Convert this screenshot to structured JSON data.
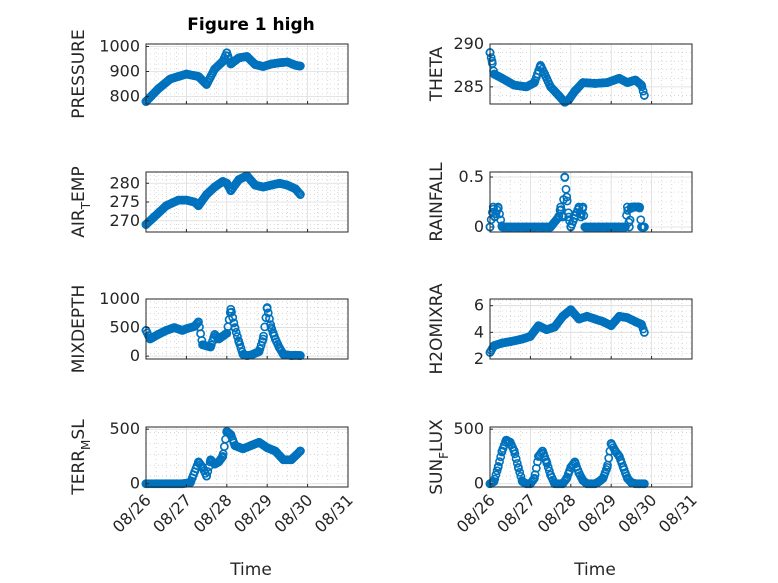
{
  "title": "Figure 1 high",
  "accent_color": "#0072BD",
  "x_tick_labels": [
    "08/26",
    "08/27",
    "08/28",
    "08/29",
    "08/30",
    "08/31"
  ],
  "x_label": "Time",
  "chart_data": [
    {
      "id": "pressure",
      "type": "scatter",
      "ylabel": "PRESSURE",
      "title": "Figure 1 high",
      "ylim": [
        770,
        1010
      ],
      "yticks": [
        800,
        900,
        1000
      ],
      "ytick_labels": [
        "800",
        "900",
        "1000"
      ],
      "xlim_days": [
        26,
        31
      ],
      "grid": true,
      "data_xmax": 29.82,
      "x": [
        26.0,
        26.3,
        26.6,
        27.0,
        27.3,
        27.5,
        27.7,
        27.9,
        28.0,
        28.1,
        28.3,
        28.5,
        28.7,
        28.9,
        29.1,
        29.3,
        29.5,
        29.7,
        29.8
      ],
      "y": [
        780,
        830,
        870,
        890,
        880,
        848,
        910,
        940,
        975,
        930,
        955,
        960,
        928,
        920,
        930,
        935,
        938,
        925,
        922
      ]
    },
    {
      "id": "theta",
      "type": "scatter",
      "ylabel": "THETA",
      "ylim": [
        283,
        290
      ],
      "yticks": [
        285,
        290
      ],
      "ytick_labels": [
        "285",
        "290"
      ],
      "xlim_days": [
        26,
        31
      ],
      "grid": true,
      "data_xmax": 29.82,
      "x": [
        26.0,
        26.05,
        26.1,
        26.3,
        26.6,
        26.9,
        27.1,
        27.25,
        27.35,
        27.5,
        27.7,
        27.85,
        27.95,
        28.1,
        28.3,
        28.6,
        28.9,
        29.2,
        29.4,
        29.6,
        29.75,
        29.82
      ],
      "y": [
        289,
        288,
        286.5,
        286,
        285.2,
        285,
        285.5,
        287.5,
        286.5,
        285,
        284,
        283.2,
        283.5,
        284.5,
        285.5,
        285.4,
        285.5,
        286,
        285.5,
        285.8,
        285.2,
        284
      ]
    },
    {
      "id": "air_temp",
      "type": "scatter",
      "ylabel": "AIR_TEMP",
      "ylabel_display": {
        "base": "AIR",
        "sub": "T",
        "rest": "EMP"
      },
      "ylim": [
        267,
        283
      ],
      "yticks": [
        270,
        275,
        280
      ],
      "ytick_labels": [
        "270",
        "275",
        "280"
      ],
      "xlim_days": [
        26,
        31
      ],
      "grid": true,
      "data_xmax": 29.82,
      "x": [
        26.0,
        26.2,
        26.5,
        26.8,
        27.0,
        27.2,
        27.3,
        27.5,
        27.7,
        27.9,
        28.0,
        28.1,
        28.3,
        28.5,
        28.7,
        28.9,
        29.1,
        29.3,
        29.5,
        29.7,
        29.82
      ],
      "y": [
        269,
        271,
        274,
        275.5,
        275.5,
        275,
        274,
        277,
        279,
        280.5,
        280,
        278,
        281,
        282,
        279.5,
        279,
        279.5,
        280,
        279.5,
        278.5,
        277
      ]
    },
    {
      "id": "rainfall",
      "type": "scatter",
      "ylabel": "RAINFALL",
      "ylim": [
        -0.05,
        0.55
      ],
      "yticks": [
        0,
        0.5
      ],
      "ytick_labels": [
        "0",
        "0.5"
      ],
      "xlim_days": [
        26,
        31
      ],
      "grid": true,
      "data_xmax": 29.82,
      "x": [
        26.0,
        26.08,
        26.12,
        26.2,
        26.3,
        26.5,
        26.7,
        26.9,
        27.1,
        27.3,
        27.5,
        27.7,
        27.75,
        27.8,
        27.85,
        27.9,
        27.95,
        28.0,
        28.2,
        28.25,
        28.3,
        28.35,
        28.5,
        28.7,
        28.9,
        29.1,
        29.2,
        29.35,
        29.4,
        29.45,
        29.5,
        29.55,
        29.6,
        29.65,
        29.7,
        29.75,
        29.82
      ],
      "y": [
        0,
        0.2,
        0.1,
        0.2,
        0,
        0,
        0,
        0,
        0,
        0,
        0,
        0.1,
        0.2,
        0.1,
        0.5,
        0.3,
        0.1,
        0,
        0.2,
        0.1,
        0.2,
        0,
        0,
        0,
        0,
        0,
        0,
        0,
        0.2,
        0,
        0.2,
        0.2,
        0.2,
        0.2,
        0.2,
        0,
        0
      ]
    },
    {
      "id": "mixdepth",
      "type": "scatter",
      "ylabel": "MIXDEPTH",
      "ylim": [
        -50,
        1000
      ],
      "yticks": [
        0,
        500,
        1000
      ],
      "ytick_labels": [
        "0",
        "500",
        "1000"
      ],
      "xlim_days": [
        26,
        31
      ],
      "grid": true,
      "data_xmax": 29.82,
      "x": [
        26.0,
        26.1,
        26.3,
        26.5,
        26.7,
        26.9,
        27.0,
        27.2,
        27.3,
        27.4,
        27.5,
        27.6,
        27.7,
        27.8,
        27.9,
        28.0,
        28.1,
        28.2,
        28.3,
        28.4,
        28.5,
        28.6,
        28.8,
        28.9,
        29.0,
        29.1,
        29.15,
        29.2,
        29.3,
        29.4,
        29.5,
        29.6,
        29.7,
        29.82
      ],
      "y": [
        450,
        300,
        380,
        450,
        500,
        450,
        480,
        520,
        600,
        200,
        180,
        160,
        380,
        300,
        350,
        400,
        820,
        500,
        250,
        30,
        10,
        20,
        80,
        300,
        850,
        500,
        400,
        300,
        150,
        30,
        20,
        10,
        15,
        10
      ]
    },
    {
      "id": "h2omixra",
      "type": "scatter",
      "ylabel": "H2OMIXRA",
      "ylim": [
        2,
        6.5
      ],
      "yticks": [
        2,
        4,
        6
      ],
      "ytick_labels": [
        "2",
        "4",
        "6"
      ],
      "xlim_days": [
        26,
        31
      ],
      "grid": true,
      "data_xmax": 29.82,
      "x": [
        26.0,
        26.1,
        26.3,
        26.5,
        26.8,
        27.0,
        27.2,
        27.4,
        27.6,
        27.8,
        28.0,
        28.2,
        28.4,
        28.6,
        28.8,
        29.0,
        29.2,
        29.4,
        29.6,
        29.75,
        29.82
      ],
      "y": [
        2.5,
        3.0,
        3.2,
        3.3,
        3.5,
        3.7,
        4.5,
        4.2,
        4.4,
        5.2,
        5.7,
        5.0,
        5.2,
        5.0,
        4.8,
        4.5,
        5.2,
        5.1,
        4.8,
        4.6,
        4.0
      ]
    },
    {
      "id": "terr_msl",
      "type": "scatter",
      "ylabel": "TERR_MSL",
      "ylabel_display": {
        "base": "TERR",
        "sub": "M",
        "rest": "SL"
      },
      "ylim": [
        -30,
        520
      ],
      "yticks": [
        0,
        500
      ],
      "ytick_labels": [
        "0",
        "500"
      ],
      "xlim_days": [
        26,
        31
      ],
      "grid": true,
      "data_xmax": 29.82,
      "x": [
        26.0,
        26.3,
        26.6,
        26.9,
        27.1,
        27.3,
        27.4,
        27.5,
        27.6,
        27.7,
        27.8,
        27.9,
        28.0,
        28.1,
        28.2,
        28.4,
        28.6,
        28.8,
        29.0,
        29.2,
        29.4,
        29.6,
        29.82
      ],
      "y": [
        0,
        0,
        0,
        0,
        10,
        200,
        150,
        70,
        220,
        180,
        200,
        250,
        480,
        450,
        350,
        320,
        350,
        380,
        330,
        300,
        220,
        220,
        300
      ]
    },
    {
      "id": "sun_flux",
      "type": "scatter",
      "ylabel": "SUN_FLUX",
      "ylabel_display": {
        "base": "SUN",
        "sub": "F",
        "rest": "LUX"
      },
      "ylim": [
        -30,
        520
      ],
      "yticks": [
        0,
        500
      ],
      "ytick_labels": [
        "0",
        "500"
      ],
      "xlim_days": [
        26,
        31
      ],
      "grid": true,
      "data_xmax": 29.82,
      "x": [
        26.0,
        26.1,
        26.2,
        26.3,
        26.4,
        26.5,
        26.6,
        26.7,
        26.8,
        26.9,
        27.0,
        27.1,
        27.2,
        27.3,
        27.4,
        27.5,
        27.6,
        27.7,
        27.8,
        27.9,
        28.0,
        28.1,
        28.2,
        28.3,
        28.4,
        28.5,
        28.6,
        28.7,
        28.8,
        28.9,
        29.0,
        29.1,
        29.2,
        29.3,
        29.4,
        29.5,
        29.6,
        29.7,
        29.82
      ],
      "y": [
        0,
        20,
        150,
        300,
        400,
        380,
        300,
        150,
        20,
        0,
        0,
        50,
        250,
        300,
        200,
        80,
        0,
        0,
        0,
        50,
        150,
        200,
        100,
        30,
        0,
        0,
        0,
        20,
        50,
        150,
        370,
        300,
        250,
        150,
        50,
        10,
        0,
        0,
        0
      ]
    }
  ]
}
